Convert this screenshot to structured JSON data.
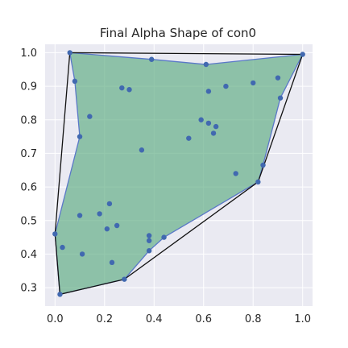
{
  "chart_data": {
    "type": "scatter",
    "title": "Final Alpha Shape of con0",
    "xlabel": "",
    "ylabel": "",
    "xlim": [
      -0.04,
      1.04
    ],
    "ylim": [
      0.245,
      1.025
    ],
    "xticks": [
      0.0,
      0.2,
      0.4,
      0.6,
      0.8,
      1.0
    ],
    "xtick_labels": [
      "0.0",
      "0.2",
      "0.4",
      "0.6",
      "0.8",
      "1.0"
    ],
    "yticks": [
      0.3,
      0.4,
      0.5,
      0.6,
      0.7,
      0.8,
      0.9,
      1.0
    ],
    "ytick_labels": [
      "0.3",
      "0.4",
      "0.5",
      "0.6",
      "0.7",
      "0.8",
      "0.9",
      "1.0"
    ],
    "grid": true,
    "background": "#eaeaf2",
    "colors": {
      "points": "#4169b0",
      "alpha_fill": "#5aaa80",
      "alpha_edge": "#5a78c8",
      "hull": "#111111"
    },
    "points": [
      {
        "x": 0.0,
        "y": 0.46
      },
      {
        "x": 0.02,
        "y": 0.28
      },
      {
        "x": 0.03,
        "y": 0.42
      },
      {
        "x": 0.06,
        "y": 1.0
      },
      {
        "x": 0.08,
        "y": 0.915
      },
      {
        "x": 0.1,
        "y": 0.75
      },
      {
        "x": 0.1,
        "y": 0.515
      },
      {
        "x": 0.11,
        "y": 0.4
      },
      {
        "x": 0.14,
        "y": 0.81
      },
      {
        "x": 0.18,
        "y": 0.52
      },
      {
        "x": 0.21,
        "y": 0.475
      },
      {
        "x": 0.22,
        "y": 0.55
      },
      {
        "x": 0.23,
        "y": 0.375
      },
      {
        "x": 0.25,
        "y": 0.485
      },
      {
        "x": 0.27,
        "y": 0.895
      },
      {
        "x": 0.28,
        "y": 0.325
      },
      {
        "x": 0.3,
        "y": 0.89
      },
      {
        "x": 0.35,
        "y": 0.71
      },
      {
        "x": 0.38,
        "y": 0.455
      },
      {
        "x": 0.38,
        "y": 0.44
      },
      {
        "x": 0.38,
        "y": 0.41
      },
      {
        "x": 0.39,
        "y": 0.98
      },
      {
        "x": 0.44,
        "y": 0.45
      },
      {
        "x": 0.54,
        "y": 0.745
      },
      {
        "x": 0.59,
        "y": 0.8
      },
      {
        "x": 0.61,
        "y": 0.965
      },
      {
        "x": 0.62,
        "y": 0.885
      },
      {
        "x": 0.62,
        "y": 0.79
      },
      {
        "x": 0.64,
        "y": 0.76
      },
      {
        "x": 0.65,
        "y": 0.78
      },
      {
        "x": 0.69,
        "y": 0.9
      },
      {
        "x": 0.73,
        "y": 0.64
      },
      {
        "x": 0.8,
        "y": 0.91
      },
      {
        "x": 0.82,
        "y": 0.615
      },
      {
        "x": 0.84,
        "y": 0.665
      },
      {
        "x": 0.9,
        "y": 0.925
      },
      {
        "x": 0.91,
        "y": 0.865
      },
      {
        "x": 1.0,
        "y": 0.995
      }
    ],
    "alpha_shape": [
      [
        0.06,
        1.0
      ],
      [
        0.39,
        0.98
      ],
      [
        0.61,
        0.965
      ],
      [
        1.0,
        0.995
      ],
      [
        0.91,
        0.865
      ],
      [
        0.84,
        0.665
      ],
      [
        0.82,
        0.615
      ],
      [
        0.44,
        0.45
      ],
      [
        0.38,
        0.41
      ],
      [
        0.28,
        0.325
      ],
      [
        0.02,
        0.28
      ],
      [
        0.0,
        0.46
      ],
      [
        0.1,
        0.75
      ],
      [
        0.08,
        0.915
      ]
    ],
    "convex_hull": [
      [
        0.06,
        1.0
      ],
      [
        1.0,
        0.995
      ],
      [
        0.82,
        0.615
      ],
      [
        0.28,
        0.325
      ],
      [
        0.02,
        0.28
      ],
      [
        0.0,
        0.46
      ]
    ]
  }
}
